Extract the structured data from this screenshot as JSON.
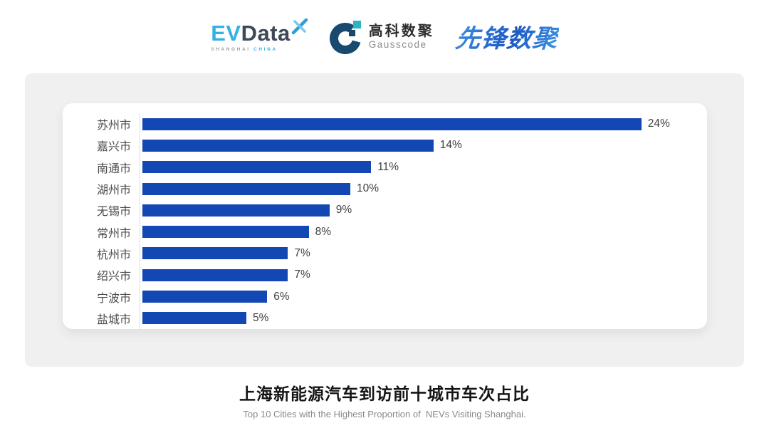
{
  "header": {
    "evdata": {
      "ev": "EV",
      "data": "Data",
      "sub_left": "SHANGHAI",
      "sub_right": "CHINA"
    },
    "gausscode": {
      "cn": "高科数聚",
      "en": "Gausscode"
    },
    "pioneer": {
      "cn": "先锋数聚"
    }
  },
  "colors": {
    "bar_blue": "#1347b4",
    "evdata_light_blue": "#35b0e4",
    "evdata_dark": "#3d4956",
    "gausscode_navy": "#174a6e",
    "gausscode_teal": "#2fb3c4",
    "pioneer_blue": "#2471d0",
    "panel_gray": "#f0f0f1"
  },
  "chart_data": {
    "type": "bar",
    "orientation": "horizontal",
    "title": "上海新能源汽车到访前十城市车次占比",
    "subtitle": "Top 10 Cities with the Highest Proportion of  NEVs Visiting Shanghai.",
    "categories": [
      "苏州市",
      "嘉兴市",
      "南通市",
      "湖州市",
      "无锡市",
      "常州市",
      "杭州市",
      "绍兴市",
      "宁波市",
      "盐城市"
    ],
    "values": [
      24,
      14,
      11,
      10,
      9,
      8,
      7,
      7,
      6,
      5
    ],
    "value_labels": [
      "24%",
      "14%",
      "11%",
      "10%",
      "9%",
      "8%",
      "7%",
      "7%",
      "6%",
      "5%"
    ],
    "unit": "%",
    "xlim": [
      0,
      25
    ],
    "bar_color": "#1347b4",
    "grid": false,
    "legend": false,
    "value_label_position": "end-of-bar"
  }
}
